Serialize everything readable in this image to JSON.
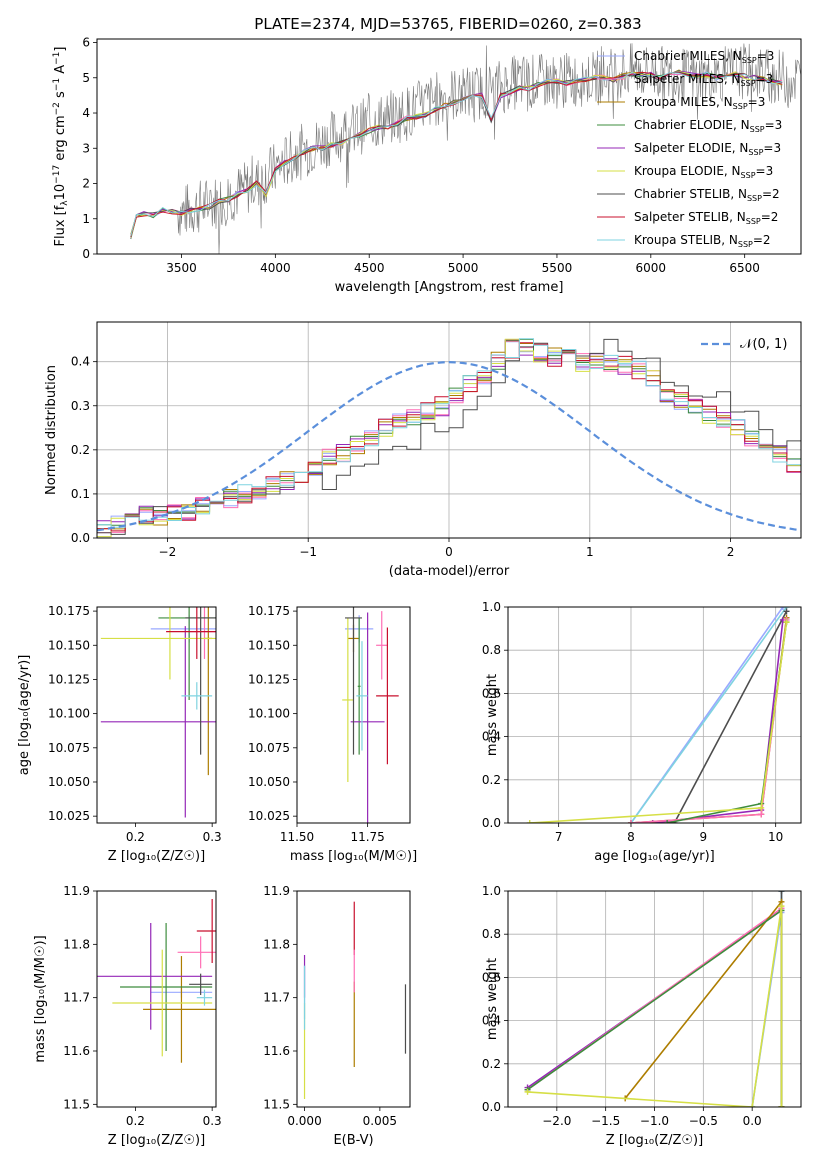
{
  "figure_title": "PLATE=2374, MJD=53765, FIBERID=0260, z=0.383",
  "model_colors": [
    "#9aa9ff",
    "#ff6fb5",
    "#ad7d00",
    "#3e8c3e",
    "#9427b7",
    "#d6df46",
    "#4d4d4d",
    "#c8102e",
    "#7fd3e0"
  ],
  "chart_data": [
    {
      "type": "line",
      "panel": "spectrum",
      "title": "PLATE=2374, MJD=53765, FIBERID=0260, z=0.383",
      "xlabel": "wavelength [Angstrom, rest frame]",
      "ylabel_parts": [
        "Flux [f",
        "λ",
        "10",
        "−17",
        " erg cm",
        "−2",
        " s",
        "−1",
        " A",
        "−1",
        "]"
      ],
      "xlim": [
        3050,
        6800
      ],
      "ylim": [
        0,
        6.1
      ],
      "xticks": [
        3500,
        4000,
        4500,
        5000,
        5500,
        6000,
        6500
      ],
      "yticks": [
        0,
        1,
        2,
        3,
        4,
        5,
        6
      ],
      "data_x": [
        3350,
        3500,
        3700,
        3900,
        4100,
        4300,
        4500,
        4700,
        4900,
        5100,
        5300,
        5500,
        5700,
        5900,
        6100,
        6300,
        6500,
        6700
      ],
      "data_y": [
        1.2,
        1.2,
        1.5,
        2.0,
        2.8,
        3.3,
        3.7,
        4.0,
        4.5,
        4.6,
        4.9,
        4.9,
        5.0,
        5.2,
        5.1,
        5.0,
        5.2,
        5.0
      ],
      "model_x": [
        3230,
        3260,
        3300,
        3350,
        3400,
        3450,
        3500,
        3550,
        3600,
        3650,
        3700,
        3750,
        3800,
        3850,
        3900,
        3950,
        4000,
        4050,
        4100,
        4150,
        4200,
        4250,
        4300,
        4350,
        4400,
        4450,
        4500,
        4550,
        4600,
        4650,
        4700,
        4750,
        4800,
        4850,
        4900,
        4950,
        5000,
        5050,
        5100,
        5150,
        5200,
        5250,
        5300,
        5350,
        5400,
        5450,
        5500,
        5550,
        5600,
        5650,
        5700,
        5750,
        5800,
        5850,
        5900,
        5950,
        6000,
        6050,
        6100,
        6150,
        6200,
        6250,
        6300,
        6350,
        6400,
        6450,
        6500,
        6550,
        6600,
        6650,
        6700
      ],
      "model_y": [
        0.5,
        1.05,
        1.15,
        1.1,
        1.25,
        1.2,
        1.15,
        1.25,
        1.3,
        1.35,
        1.5,
        1.55,
        1.7,
        1.8,
        2.0,
        1.7,
        2.4,
        2.6,
        2.7,
        2.9,
        3.0,
        3.0,
        3.1,
        3.15,
        3.3,
        3.4,
        3.5,
        3.6,
        3.6,
        3.7,
        3.85,
        3.9,
        3.95,
        4.1,
        4.2,
        4.3,
        4.4,
        4.5,
        4.5,
        3.8,
        4.5,
        4.6,
        4.7,
        4.7,
        4.8,
        4.9,
        4.9,
        4.85,
        4.9,
        4.95,
        5.0,
        5.0,
        4.95,
        5.05,
        5.1,
        5.1,
        5.1,
        5.0,
        5.1,
        5.15,
        5.1,
        5.05,
        5.1,
        5.0,
        5.05,
        5.1,
        5.05,
        5.0,
        4.95,
        4.9,
        4.85
      ],
      "legend_position": "upper right",
      "series": [
        {
          "name": "Chabrier MILES, N",
          "sub": "SSP",
          "suffix": "=3",
          "color": "#9aa9ff"
        },
        {
          "name": "Salpeter MILES, N",
          "sub": "SSP",
          "suffix": "=3",
          "color": "#ff6fb5"
        },
        {
          "name": "Kroupa MILES, N",
          "sub": "SSP",
          "suffix": "=3",
          "color": "#ad7d00"
        },
        {
          "name": "Chabrier ELODIE, N",
          "sub": "SSP",
          "suffix": "=3",
          "color": "#3e8c3e"
        },
        {
          "name": "Salpeter ELODIE, N",
          "sub": "SSP",
          "suffix": "=3",
          "color": "#9427b7"
        },
        {
          "name": "Kroupa ELODIE, N",
          "sub": "SSP",
          "suffix": "=3",
          "color": "#d6df46"
        },
        {
          "name": "Chabrier STELIB, N",
          "sub": "SSP",
          "suffix": "=2",
          "color": "#4d4d4d"
        },
        {
          "name": "Salpeter STELIB, N",
          "sub": "SSP",
          "suffix": "=2",
          "color": "#c8102e"
        },
        {
          "name": "Kroupa STELIB, N",
          "sub": "SSP",
          "suffix": "=2",
          "color": "#7fd3e0"
        }
      ]
    },
    {
      "type": "line",
      "panel": "residual-histogram",
      "xlabel": "(data-model)/error",
      "ylabel": "Normed distribution",
      "xlim": [
        -2.5,
        2.5
      ],
      "ylim": [
        0,
        0.49
      ],
      "xticks": [
        -2,
        -1,
        0,
        1,
        2
      ],
      "yticks": [
        0.0,
        0.1,
        0.2,
        0.3,
        0.4
      ],
      "grid": true,
      "bin_width": 0.1,
      "histogram_x_start": -2.5,
      "envelope": [
        0.02,
        0.03,
        0.04,
        0.05,
        0.05,
        0.06,
        0.06,
        0.07,
        0.08,
        0.09,
        0.1,
        0.11,
        0.12,
        0.13,
        0.14,
        0.16,
        0.18,
        0.19,
        0.21,
        0.23,
        0.25,
        0.26,
        0.27,
        0.29,
        0.3,
        0.32,
        0.35,
        0.37,
        0.4,
        0.43,
        0.43,
        0.42,
        0.41,
        0.41,
        0.4,
        0.4,
        0.4,
        0.39,
        0.38,
        0.36,
        0.33,
        0.31,
        0.3,
        0.28,
        0.27,
        0.25,
        0.23,
        0.21,
        0.19,
        0.17,
        0.15,
        0.14,
        0.13,
        0.11,
        0.1,
        0.09,
        0.08,
        0.07,
        0.06,
        0.05,
        0.05,
        0.04,
        0.04,
        0.03,
        0.03,
        0.02,
        0.02,
        0.02,
        0.02,
        0.02,
        0.02
      ],
      "reference_curve": {
        "label": "𝒩(0, 1)",
        "mean": 0,
        "sigma": 1,
        "color": "#5b8fdb",
        "dashed": true
      },
      "legend_position": "upper right"
    },
    {
      "type": "scatter",
      "panel": "age-vs-metallicity",
      "xlabel": "Z [log₁₀(Z/Z☉)]",
      "ylabel": "age  [log₁₀(age/yr)]",
      "xlim": [
        0.15,
        0.305
      ],
      "ylim": [
        10.02,
        10.178
      ],
      "xticks": [
        0.2,
        0.3
      ],
      "yticks": [
        10.025,
        10.05,
        10.075,
        10.1,
        10.125,
        10.15,
        10.175
      ],
      "points": [
        {
          "x": 0.27,
          "y": 10.162,
          "xerr": 0.05,
          "yerr": 0.01,
          "color": "#9aa9ff"
        },
        {
          "x": 0.29,
          "y": 10.16,
          "xerr": 0.02,
          "yerr": 0.02,
          "color": "#ff6fb5"
        },
        {
          "x": 0.295,
          "y": 10.155,
          "xerr": 0.005,
          "yerr": 0.1,
          "color": "#ad7d00"
        },
        {
          "x": 0.27,
          "y": 10.17,
          "xerr": 0.04,
          "yerr": 0.06,
          "color": "#3e8c3e"
        },
        {
          "x": 0.265,
          "y": 10.094,
          "xerr": 0.11,
          "yerr": 0.07,
          "color": "#9427b7"
        },
        {
          "x": 0.245,
          "y": 10.155,
          "xerr": 0.09,
          "yerr": 0.03,
          "color": "#d6df46"
        },
        {
          "x": 0.285,
          "y": 10.17,
          "xerr": 0.02,
          "yerr": 0.1,
          "color": "#4d4d4d"
        },
        {
          "x": 0.28,
          "y": 10.16,
          "xerr": 0.04,
          "yerr": 0.02,
          "color": "#c8102e"
        },
        {
          "x": 0.28,
          "y": 10.113,
          "xerr": 0.02,
          "yerr": 0.01,
          "color": "#7fd3e0"
        }
      ]
    },
    {
      "type": "scatter",
      "panel": "age-vs-mass",
      "xlabel": "mass [log₁₀(M/M☉)]",
      "xlim": [
        11.5,
        11.9
      ],
      "ylim": [
        10.02,
        10.178
      ],
      "xticks": [
        11.5,
        11.75
      ],
      "yticks": [
        10.025,
        10.05,
        10.075,
        10.1,
        10.125,
        10.15,
        10.175
      ],
      "points": [
        {
          "x": 11.72,
          "y": 10.162,
          "xerr": 0.05,
          "yerr": 0.01,
          "color": "#9aa9ff"
        },
        {
          "x": 11.8,
          "y": 10.15,
          "xerr": 0.02,
          "yerr": 0.025,
          "color": "#ff6fb5"
        },
        {
          "x": 11.7,
          "y": 10.155,
          "xerr": 0.02,
          "yerr": 0.01,
          "color": "#ad7d00"
        },
        {
          "x": 11.72,
          "y": 10.12,
          "xerr": 0.005,
          "yerr": 0.05,
          "color": "#3e8c3e"
        },
        {
          "x": 11.75,
          "y": 10.094,
          "xerr": 0.06,
          "yerr": 0.08,
          "color": "#9427b7"
        },
        {
          "x": 11.68,
          "y": 10.11,
          "xerr": 0.02,
          "yerr": 0.06,
          "color": "#d6df46"
        },
        {
          "x": 11.7,
          "y": 10.17,
          "xerr": 0.03,
          "yerr": 0.1,
          "color": "#4d4d4d"
        },
        {
          "x": 11.82,
          "y": 10.113,
          "xerr": 0.04,
          "yerr": 0.05,
          "color": "#c8102e"
        },
        {
          "x": 11.73,
          "y": 10.113,
          "xerr": 0.02,
          "yerr": 0.04,
          "color": "#7fd3e0"
        }
      ]
    },
    {
      "type": "line",
      "panel": "mass-weight-vs-age",
      "xlabel": "age  [log₁₀(age/yr)]",
      "ylabel": "mass weight",
      "xlim": [
        6.3,
        10.35
      ],
      "ylim": [
        0,
        1
      ],
      "xticks": [
        7,
        8,
        9,
        10
      ],
      "yticks": [
        0.0,
        0.2,
        0.4,
        0.6,
        0.8,
        1.0
      ],
      "grid": true,
      "series": [
        {
          "color": "#9aa9ff",
          "x": [
            8.0,
            10.1
          ],
          "y": [
            0.0,
            1.0
          ]
        },
        {
          "color": "#7fd3e0",
          "x": [
            8.0,
            10.15
          ],
          "y": [
            0.0,
            1.0
          ]
        },
        {
          "color": "#4d4d4d",
          "x": [
            8.6,
            10.15
          ],
          "y": [
            0.0,
            0.98
          ]
        },
        {
          "color": "#9427b7",
          "x": [
            8.3,
            9.8,
            10.1
          ],
          "y": [
            0.0,
            0.06,
            0.94
          ]
        },
        {
          "color": "#ad7d00",
          "x": [
            8.0,
            9.8,
            10.15
          ],
          "y": [
            0.0,
            0.04,
            0.95
          ]
        },
        {
          "color": "#ff6fb5",
          "x": [
            8.0,
            9.8,
            10.15
          ],
          "y": [
            0.0,
            0.04,
            0.94
          ]
        },
        {
          "color": "#3e8c3e",
          "x": [
            8.5,
            9.8,
            10.15
          ],
          "y": [
            0.0,
            0.09,
            0.93
          ]
        },
        {
          "color": "#d6df46",
          "x": [
            6.6,
            9.8,
            10.15
          ],
          "y": [
            0.0,
            0.07,
            0.93
          ]
        }
      ]
    },
    {
      "type": "scatter",
      "panel": "mass-vs-metallicity",
      "xlabel": "Z [log₁₀(Z/Z☉)]",
      "ylabel": "mass [log₁₀(M/M☉)]",
      "xlim": [
        0.15,
        0.305
      ],
      "ylim": [
        11.495,
        11.9
      ],
      "xticks": [
        0.2,
        0.3
      ],
      "yticks": [
        11.5,
        11.6,
        11.7,
        11.8,
        11.9
      ],
      "points": [
        {
          "x": 0.26,
          "y": 11.71,
          "xerr": 0.04,
          "yerr": 0.01,
          "color": "#9aa9ff"
        },
        {
          "x": 0.285,
          "y": 11.785,
          "xerr": 0.03,
          "yerr": 0.03,
          "color": "#ff6fb5"
        },
        {
          "x": 0.26,
          "y": 11.678,
          "xerr": 0.05,
          "yerr": 0.1,
          "color": "#ad7d00"
        },
        {
          "x": 0.24,
          "y": 11.72,
          "xerr": 0.06,
          "yerr": 0.12,
          "color": "#3e8c3e"
        },
        {
          "x": 0.22,
          "y": 11.74,
          "xerr": 0.08,
          "yerr": 0.1,
          "color": "#9427b7"
        },
        {
          "x": 0.235,
          "y": 11.69,
          "xerr": 0.065,
          "yerr": 0.1,
          "color": "#d6df46"
        },
        {
          "x": 0.285,
          "y": 11.725,
          "xerr": 0.015,
          "yerr": 0.02,
          "color": "#4d4d4d"
        },
        {
          "x": 0.3,
          "y": 11.825,
          "xerr": 0.02,
          "yerr": 0.06,
          "color": "#c8102e"
        },
        {
          "x": 0.29,
          "y": 11.7,
          "xerr": 0.01,
          "yerr": 0.015,
          "color": "#7fd3e0"
        }
      ]
    },
    {
      "type": "scatter",
      "panel": "mass-vs-extinction",
      "xlabel": "E(B-V)",
      "xlim": [
        -0.0005,
        0.007
      ],
      "ylim": [
        11.495,
        11.9
      ],
      "xticks": [
        0.0,
        0.005
      ],
      "xtick_labels": [
        "0.000",
        "0.005"
      ],
      "yticks": [
        11.5,
        11.6,
        11.7,
        11.8,
        11.9
      ],
      "points": [
        {
          "x": 0.0,
          "y": 11.71,
          "yerr": 0.05,
          "color": "#9aa9ff"
        },
        {
          "x": 0.0,
          "y": 11.74,
          "yerr": 0.04,
          "color": "#9427b7"
        },
        {
          "x": 0.0,
          "y": 11.6,
          "yerr": 0.09,
          "color": "#d6df46"
        },
        {
          "x": 0.0,
          "y": 11.7,
          "yerr": 0.06,
          "color": "#7fd3e0"
        },
        {
          "x": 0.0033,
          "y": 11.83,
          "yerr": 0.05,
          "color": "#c8102e"
        },
        {
          "x": 0.0033,
          "y": 11.65,
          "yerr": 0.08,
          "color": "#ad7d00"
        },
        {
          "x": 0.0033,
          "y": 11.75,
          "yerr": 0.04,
          "color": "#ff6fb5"
        },
        {
          "x": 0.0067,
          "y": 11.66,
          "yerr": 0.065,
          "color": "#4d4d4d"
        }
      ]
    },
    {
      "type": "line",
      "panel": "mass-weight-vs-metallicity",
      "xlabel": "Z [log₁₀(Z/Z☉)]",
      "ylabel": "mass weight",
      "xlim": [
        -2.5,
        0.5
      ],
      "ylim": [
        0,
        1
      ],
      "xticks": [
        -2.0,
        -1.5,
        -1.0,
        -0.5,
        0.0
      ],
      "yticks": [
        0.0,
        0.2,
        0.4,
        0.6,
        0.8,
        1.0
      ],
      "grid": true,
      "series": [
        {
          "color": "#9aa9ff",
          "x": [
            0.0,
            0.3,
            0.3
          ],
          "y": [
            0.0,
            0.9,
            1.0
          ]
        },
        {
          "color": "#7fd3e0",
          "x": [
            0.0,
            0.3,
            0.3
          ],
          "y": [
            0.0,
            0.92,
            1.0
          ]
        },
        {
          "color": "#4d4d4d",
          "x": [
            0.3,
            0.3
          ],
          "y": [
            0.0,
            1.0
          ]
        },
        {
          "color": "#9427b7",
          "x": [
            -2.3,
            0.3,
            0.3
          ],
          "y": [
            0.09,
            0.91,
            0.0
          ]
        },
        {
          "color": "#ff6fb5",
          "x": [
            -2.3,
            0.3,
            0.3
          ],
          "y": [
            0.08,
            0.92,
            0.0
          ]
        },
        {
          "color": "#ad7d00",
          "x": [
            -1.3,
            0.3,
            0.3
          ],
          "y": [
            0.04,
            0.95,
            0.0
          ]
        },
        {
          "color": "#3e8c3e",
          "x": [
            -2.3,
            0.3,
            0.3
          ],
          "y": [
            0.08,
            0.91,
            0.0
          ]
        },
        {
          "color": "#d6df46",
          "x": [
            -2.3,
            0.0,
            0.3,
            0.3
          ],
          "y": [
            0.07,
            0.0,
            0.93,
            0.0
          ]
        }
      ]
    }
  ]
}
